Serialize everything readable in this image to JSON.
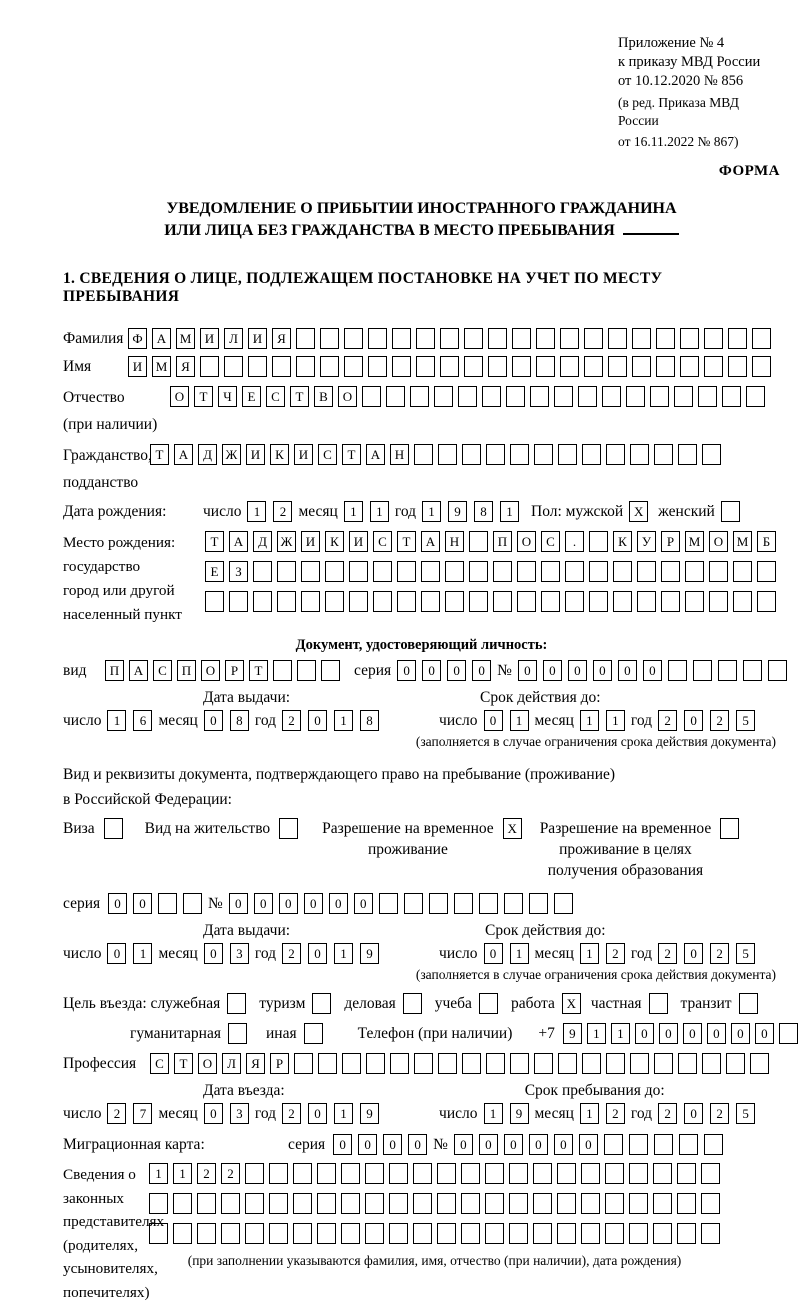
{
  "common": {
    "day": "число",
    "month": "месяц",
    "year": "год",
    "series": "серия",
    "number": "№"
  },
  "header": {
    "appendix_line1": "Приложение № 4",
    "appendix_line2": "к приказу МВД России",
    "appendix_line3": "от 10.12.2020 № 856",
    "edition_line1": "(в ред. Приказа МВД России",
    "edition_line2": "от 16.11.2022 № 867)",
    "form_label": "ФОРМА"
  },
  "title": {
    "line1": "УВЕДОМЛЕНИЕ О ПРИБЫТИИ ИНОСТРАННОГО ГРАЖДАНИНА",
    "line2": "ИЛИ ЛИЦА БЕЗ ГРАЖДАНСТВА В МЕСТО ПРЕБЫВАНИЯ"
  },
  "section1_heading": "1. СВЕДЕНИЯ О ЛИЦЕ, ПОДЛЕЖАЩЕМ ПОСТАНОВКЕ НА УЧЕТ ПО МЕСТУ ПРЕБЫВАНИЯ",
  "person": {
    "surname": {
      "label": "Фамилия",
      "cells": {
        "value": "ФАМИЛИЯ",
        "length": 27
      }
    },
    "given_name": {
      "label": "Имя",
      "cells": {
        "value": "ИМЯ",
        "length": 27
      }
    },
    "patronymic": {
      "label": "Отчество",
      "label2": "(при наличии)",
      "cells": {
        "value": "ОТЧЕСТВО",
        "length": 25
      }
    },
    "citizenship": {
      "label": "Гражданство,",
      "label2": "подданство",
      "cells": {
        "value": "ТАДЖИКИСТАН",
        "length": 24
      }
    },
    "birth_date": {
      "label": "Дата рождения:",
      "day": "12",
      "month": "11",
      "year": "1981"
    },
    "sex": {
      "label": "Пол: мужской",
      "male": {
        "value": "X",
        "length": 1
      },
      "female_label": "женский",
      "female": {
        "value": "",
        "length": 1
      }
    },
    "birth_place": {
      "label_lines": [
        "Место рождения:",
        "государство",
        "город или другой",
        "населенный пункт"
      ],
      "row1": {
        "value": "ТАДЖИКИСТАН ПОС. КУРМОМБ",
        "length": 24
      },
      "row2": {
        "value": "ЕЗ",
        "length": 24
      },
      "row3": {
        "value": "",
        "length": 24
      }
    }
  },
  "identity_doc": {
    "heading": "Документ, удостоверяющий личность:",
    "kind_label": "вид",
    "kind": {
      "value": "ПАСПОРТ",
      "length": 10
    },
    "series": {
      "value": "0000",
      "length": 4
    },
    "number": {
      "value": "000000",
      "length": 11
    },
    "issue_heading": "Дата выдачи:",
    "issue": {
      "day": "16",
      "month": "08",
      "year": "2018"
    },
    "expiry_heading": "Срок действия до:",
    "expiry": {
      "day": "01",
      "month": "11",
      "year": "2025"
    },
    "note": "(заполняется в случае ограничения срока действия документа)"
  },
  "residence_doc": {
    "intro_line1": "Вид и реквизиты документа, подтверждающего право на пребывание (проживание)",
    "intro_line2": "в Российской Федерации:",
    "options": [
      {
        "label": "Виза",
        "checked": {
          "value": "",
          "length": 1
        }
      },
      {
        "label": "Вид на жительство",
        "checked": {
          "value": "",
          "length": 1
        }
      },
      {
        "lines": [
          "Разрешение на временное",
          "проживание"
        ],
        "checked": {
          "value": "X",
          "length": 1
        }
      },
      {
        "lines": [
          "Разрешение на временное",
          "проживание в целях",
          "получения образования"
        ],
        "checked": {
          "value": "",
          "length": 1
        }
      }
    ],
    "series": {
      "value": "00",
      "length": 4
    },
    "number": {
      "value": "000000",
      "length": 14
    },
    "issue_heading": "Дата выдачи:",
    "issue": {
      "day": "01",
      "month": "03",
      "year": "2019"
    },
    "expiry_heading": "Срок действия до:",
    "expiry": {
      "day": "01",
      "month": "12",
      "year": "2025"
    },
    "note": "(заполняется в случае ограничения срока действия документа)"
  },
  "visit": {
    "label": "Цель въезда: служебная",
    "options_line1": [
      {
        "label": "туризм",
        "checked": {
          "value": "",
          "length": 1
        }
      },
      {
        "label": "деловая",
        "checked": {
          "value": "",
          "length": 1
        }
      },
      {
        "label": "учеба",
        "checked": {
          "value": "",
          "length": 1
        }
      },
      {
        "label": "работа",
        "checked": {
          "value": "X",
          "length": 1
        }
      },
      {
        "label": "частная",
        "checked": {
          "value": "",
          "length": 1
        }
      },
      {
        "label": "транзит",
        "checked": {
          "value": "",
          "length": 1
        }
      }
    ],
    "first_checked": {
      "value": "",
      "length": 1
    },
    "options_line2": [
      {
        "label": "гуманитарная",
        "checked": {
          "value": "",
          "length": 1
        }
      },
      {
        "label": "иная",
        "checked": {
          "value": "",
          "length": 1
        }
      }
    ],
    "phone_label": "Телефон (при наличии)",
    "phone_prefix": "+7",
    "phone": {
      "value": "911000000",
      "length": 10
    }
  },
  "profession": {
    "label": "Профессия",
    "cells": {
      "value": "СТОЛЯР",
      "length": 26
    }
  },
  "entry": {
    "date_heading": "Дата въезда:",
    "date": {
      "day": "27",
      "month": "03",
      "year": "2019"
    },
    "stay_heading": "Срок пребывания до:",
    "stay": {
      "day": "19",
      "month": "12",
      "year": "2025"
    }
  },
  "migration_card": {
    "label": "Миграционная карта:",
    "series": {
      "value": "0000",
      "length": 4
    },
    "number": {
      "value": "000000",
      "length": 11
    }
  },
  "legal_reps": {
    "label_lines": [
      "Сведения о",
      "законных",
      "представителях",
      "(родителях,",
      "усыновителях,",
      "попечителях)"
    ],
    "row1": {
      "value": "1122",
      "length": 24
    },
    "row2": {
      "value": "",
      "length": 24
    },
    "row3": {
      "value": "",
      "length": 24
    },
    "note": "(при заполнении указываются фамилия, имя, отчество (при наличии), дата рождения)"
  }
}
